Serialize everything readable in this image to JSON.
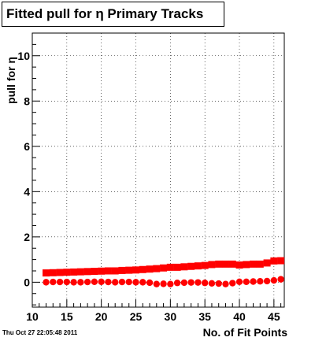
{
  "title": "Fitted pull for  η Primary Tracks",
  "footer_date": "Thu Oct 27 22:05:48 2011",
  "chart_data": {
    "type": "scatter",
    "title": "Fitted pull for  η Primary Tracks",
    "xlabel": "No. of Fit Points",
    "ylabel": "pull for η",
    "xlim": [
      10,
      46.5
    ],
    "ylim": [
      -1.1,
      11
    ],
    "xticks": [
      10,
      15,
      20,
      25,
      30,
      35,
      40,
      45
    ],
    "yticks": [
      0,
      2,
      4,
      6,
      8,
      10
    ],
    "grid": true,
    "colors": {
      "red": "#ff0000",
      "black": "#000000"
    },
    "series": [
      {
        "marker": "square",
        "color": "#ff0000",
        "x": [
          12,
          13,
          14,
          15,
          16,
          17,
          18,
          19,
          20,
          21,
          22,
          23,
          24,
          25,
          26,
          27,
          28,
          29,
          30,
          31,
          32,
          33,
          34,
          35,
          36,
          37,
          38,
          39,
          40,
          41,
          42,
          43,
          44,
          45,
          46
        ],
        "y": [
          0.41,
          0.42,
          0.43,
          0.44,
          0.45,
          0.46,
          0.47,
          0.48,
          0.49,
          0.5,
          0.5,
          0.52,
          0.53,
          0.54,
          0.56,
          0.58,
          0.6,
          0.63,
          0.66,
          0.66,
          0.68,
          0.7,
          0.72,
          0.74,
          0.78,
          0.8,
          0.8,
          0.8,
          0.76,
          0.78,
          0.8,
          0.8,
          0.85,
          0.94,
          0.95
        ]
      },
      {
        "marker": "circle",
        "color": "#ff0000",
        "x": [
          12,
          13,
          14,
          15,
          16,
          17,
          18,
          19,
          20,
          21,
          22,
          23,
          24,
          25,
          26,
          27,
          28,
          29,
          30,
          31,
          32,
          33,
          34,
          35,
          36,
          37,
          38,
          39,
          40,
          41,
          42,
          43,
          44,
          45,
          46
        ],
        "y": [
          0.0,
          0.01,
          0.01,
          0.01,
          0.0,
          0.0,
          0.01,
          0.02,
          0.02,
          0.01,
          0.0,
          0.01,
          0.01,
          0.0,
          0.0,
          -0.02,
          -0.08,
          -0.07,
          -0.08,
          -0.03,
          -0.02,
          -0.01,
          -0.01,
          -0.03,
          -0.05,
          -0.06,
          -0.08,
          -0.04,
          0.02,
          0.02,
          0.03,
          0.04,
          0.05,
          0.08,
          0.13
        ]
      },
      {
        "marker": "square",
        "color": "#000000",
        "x": [
          12,
          13,
          14,
          15,
          16,
          17,
          18,
          19,
          20,
          21,
          22,
          23,
          24,
          25,
          26,
          27,
          28,
          29,
          30,
          31,
          32,
          33,
          34,
          35,
          36,
          37,
          38,
          39,
          40,
          41,
          42,
          43,
          44,
          45,
          46
        ],
        "y": [
          0.4,
          0.41,
          0.42,
          0.43,
          0.44,
          0.45,
          0.46,
          0.47,
          0.48,
          0.49,
          0.49,
          0.51,
          0.52,
          0.53,
          0.55,
          0.57,
          0.59,
          0.62,
          0.65,
          0.65,
          0.67,
          0.69,
          0.71,
          0.73,
          0.77,
          0.79,
          0.79,
          0.79,
          0.75,
          0.77,
          0.79,
          0.79,
          0.84,
          0.93,
          0.94
        ]
      },
      {
        "marker": "circle",
        "color": "#000000",
        "x": [
          12,
          13,
          14,
          15,
          16,
          17,
          18,
          19,
          20,
          21,
          22,
          23,
          24,
          25,
          26,
          27,
          28,
          29,
          30,
          31,
          32,
          33,
          34,
          35,
          36,
          37,
          38,
          39,
          40,
          41,
          42,
          43,
          44,
          45,
          46
        ],
        "y": [
          0.01,
          0.02,
          0.02,
          0.02,
          0.01,
          0.01,
          0.02,
          0.03,
          0.03,
          0.02,
          0.01,
          0.02,
          0.02,
          0.01,
          0.01,
          -0.01,
          -0.05,
          -0.05,
          -0.06,
          -0.01,
          0.0,
          0.0,
          0.0,
          -0.02,
          -0.04,
          -0.05,
          -0.06,
          -0.03,
          0.03,
          0.03,
          0.04,
          0.05,
          0.06,
          0.09,
          0.14
        ]
      }
    ]
  }
}
